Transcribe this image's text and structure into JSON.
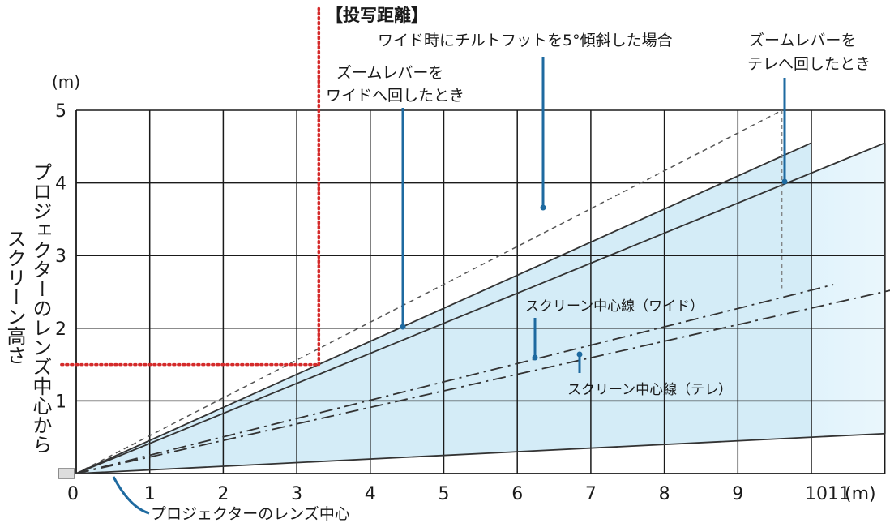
{
  "chart_data": {
    "type": "line",
    "title": "【投写距離】",
    "ylabel_lines": [
      "プロジェクターのレンズ中心から",
      "スクリーン高さ"
    ],
    "y_unit": "(m)",
    "x_unit": "(m)",
    "x_ticks": [
      "0",
      "1",
      "2",
      "3",
      "4",
      "5",
      "6",
      "7",
      "8",
      "9",
      "10",
      "11"
    ],
    "y_ticks": [
      "1",
      "2",
      "3",
      "4",
      "5"
    ],
    "xlim": [
      0,
      11
    ],
    "ylim": [
      0,
      5
    ],
    "grid": true,
    "series": [
      {
        "name": "ワイド時にチルトフットを5°傾斜した場合",
        "style": "dashed",
        "x": [
          0,
          9.6
        ],
        "y": [
          0,
          5.0
        ]
      },
      {
        "name": "ズームレバーをワイドへ回したとき",
        "style": "solid",
        "x": [
          0,
          10
        ],
        "y": [
          0,
          4.55
        ]
      },
      {
        "name": "ズームレバーをテレへ回したとき",
        "style": "solid",
        "x": [
          0,
          11
        ],
        "y": [
          0,
          4.55
        ]
      },
      {
        "name": "スクリーン中心線（ワイド）",
        "style": "dashdot",
        "x": [
          0,
          10.3
        ],
        "y": [
          0,
          2.6
        ]
      },
      {
        "name": "スクリーン中心線（テレ）",
        "style": "dashdot",
        "x": [
          0,
          11.2
        ],
        "y": [
          0,
          2.55
        ]
      },
      {
        "name": "",
        "style": "solid",
        "x": [
          0,
          11
        ],
        "y": [
          0,
          0.55
        ]
      }
    ],
    "shaded_regions": [
      {
        "color": "#d4ecf7",
        "polygon": [
          [
            0,
            0
          ],
          [
            10,
            4.55
          ],
          [
            10,
            0.5
          ]
        ]
      },
      {
        "color": "#a9dcf2",
        "polygon": [
          [
            0,
            0
          ],
          [
            11,
            4.55
          ],
          [
            11,
            0.55
          ]
        ]
      }
    ],
    "reference_lines": [
      {
        "style": "dotted",
        "color": "#d42a2a",
        "orientation": "vertical",
        "x": 3.3,
        "y_from": 1.5,
        "y_to": 6.4
      },
      {
        "style": "dotted",
        "color": "#d42a2a",
        "orientation": "horizontal",
        "y": 1.5,
        "x_from": -0.2,
        "x_to": 3.3
      }
    ],
    "projector_marker": {
      "x": 0,
      "y": 0
    },
    "annotations": {
      "tilt": "ワイド時にチルトフットを5°傾斜した場合",
      "wide_lines": [
        "ズームレバーを",
        "ワイドへ回したとき"
      ],
      "tele_lines": [
        "ズームレバーを",
        "テレへ回したとき"
      ],
      "center_wide": "スクリーン中心線（ワイド）",
      "center_tele": "スクリーン中心線（テレ）",
      "lens_center": "プロジェクターのレンズ中心"
    },
    "colors": {
      "grid": "#1a1a1a",
      "line": "#333333",
      "leader": "#1e6aa0",
      "dotted": "#d42a2a"
    }
  }
}
